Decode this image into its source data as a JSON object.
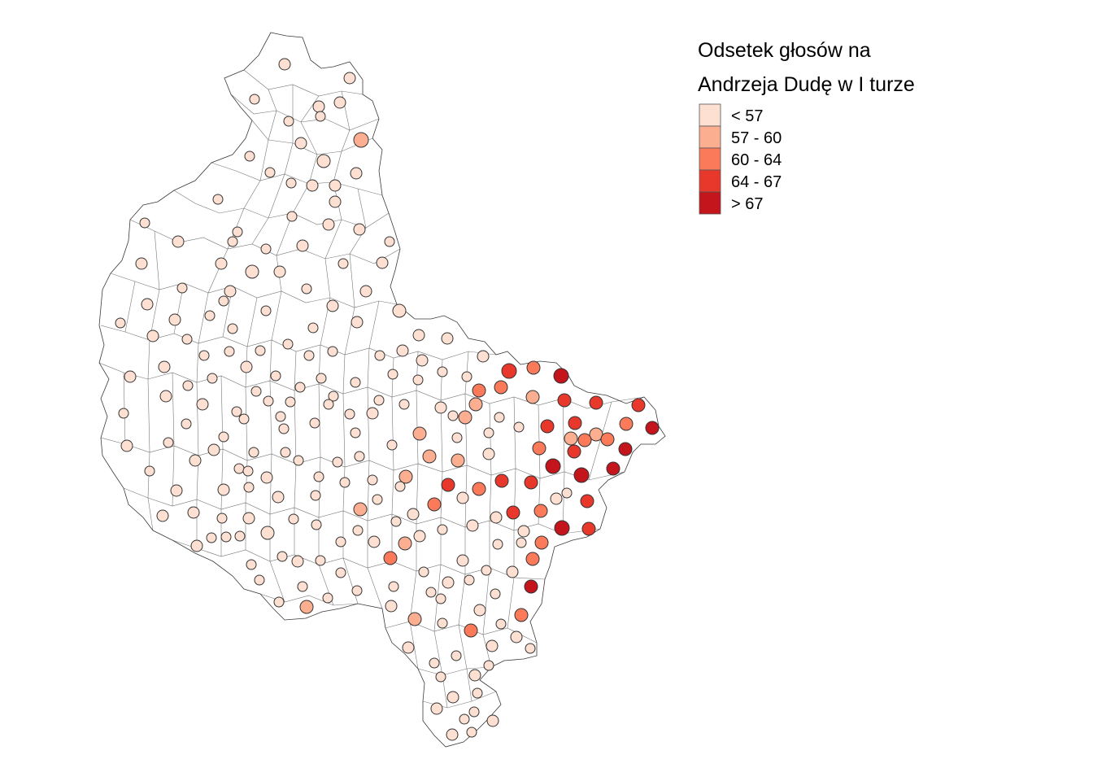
{
  "legend": {
    "title_line1": "Odsetek głosów na",
    "title_line2": "Andrzeja Dudę w I turze",
    "classes": [
      {
        "label": "< 57",
        "color": "#fee0d2"
      },
      {
        "label": "57 - 60",
        "color": "#fcae91"
      },
      {
        "label": "60 - 64",
        "color": "#fb7a5a"
      },
      {
        "label": "64 - 67",
        "color": "#e8382b"
      },
      {
        "label": "> 67",
        "color": "#c3151b"
      }
    ]
  },
  "map": {
    "border_color": "#3a3a3a",
    "fill_color": "#ffffff",
    "symbol": "proportional-circle"
  }
}
